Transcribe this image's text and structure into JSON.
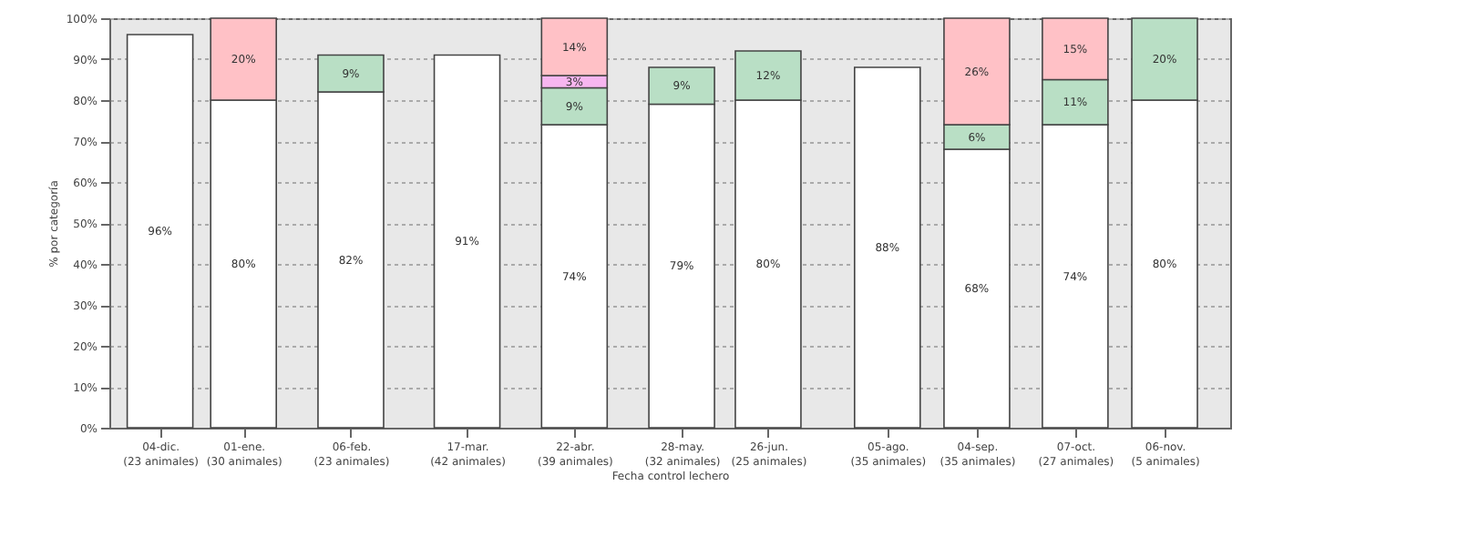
{
  "chart_data": {
    "type": "bar",
    "stacked": true,
    "xlabel": "Fecha control lechero",
    "ylabel": "% por categoría",
    "x": [
      "2022-12-04",
      "2023-01-01",
      "2023-02-06",
      "2023-03-17",
      "2023-04-22",
      "2023-05-28",
      "2023-06-26",
      "2023-08-05",
      "2023-09-04",
      "2023-10-07",
      "2023-11-06"
    ],
    "xlim": [
      "2022-11-17",
      "2023-11-28"
    ],
    "xticks": [
      {
        "value": "2022-12-04",
        "label": "04-dic.\n(23 animales)"
      },
      {
        "value": "2023-01-01",
        "label": "01-ene.\n(30 animales)"
      },
      {
        "value": "2023-02-06",
        "label": "06-feb.\n(23 animales)"
      },
      {
        "value": "2023-03-17",
        "label": "17-mar.\n(42 animales)"
      },
      {
        "value": "2023-04-22",
        "label": "22-abr.\n(39 animales)"
      },
      {
        "value": "2023-05-28",
        "label": "28-may.\n(32 animales)"
      },
      {
        "value": "2023-06-26",
        "label": "26-jun.\n(25 animales)"
      },
      {
        "value": "2023-08-05",
        "label": "05-ago.\n(35 animales)"
      },
      {
        "value": "2023-09-04",
        "label": "04-sep.\n(35 animales)"
      },
      {
        "value": "2023-10-07",
        "label": "07-oct.\n(27 animales)"
      },
      {
        "value": "2023-11-06",
        "label": "06-nov.\n(5 animales)"
      }
    ],
    "ylim": [
      0,
      100
    ],
    "yticks": [
      {
        "value": 0,
        "label": "0%"
      },
      {
        "value": 10,
        "label": "10%"
      },
      {
        "value": 20,
        "label": "20%"
      },
      {
        "value": 30,
        "label": "30%"
      },
      {
        "value": 40,
        "label": "40%"
      },
      {
        "value": 50,
        "label": "50%"
      },
      {
        "value": 60,
        "label": "60%"
      },
      {
        "value": 70,
        "label": "70%"
      },
      {
        "value": 80,
        "label": "80%"
      },
      {
        "value": 90,
        "label": "90%"
      },
      {
        "value": 100,
        "label": "100%"
      }
    ],
    "grid": "y",
    "series": [
      {
        "color": "#ffffff",
        "values": [
          96,
          80,
          82,
          91,
          74,
          79,
          80,
          88,
          68,
          74,
          80
        ],
        "value_labels": [
          "96%",
          "80%",
          "82%",
          "91%",
          "74%",
          "79%",
          "80%",
          "88%",
          "68%",
          "74%",
          "80%"
        ]
      },
      {
        "color": "#b9dfc5",
        "values": [
          null,
          null,
          9,
          null,
          9,
          9,
          12,
          null,
          6,
          11,
          20
        ],
        "value_labels": [
          null,
          null,
          "9%",
          null,
          "9%",
          "9%",
          "12%",
          null,
          "6%",
          "11%",
          "20%"
        ]
      },
      {
        "color": "#f7b6f0",
        "values": [
          null,
          null,
          null,
          null,
          3,
          null,
          null,
          null,
          null,
          null,
          null
        ],
        "value_labels": [
          null,
          null,
          null,
          null,
          "3%",
          null,
          null,
          null,
          null,
          null,
          null
        ]
      },
      {
        "color": "#ffc1c6",
        "values": [
          null,
          20,
          null,
          null,
          14,
          null,
          null,
          null,
          26,
          15,
          null
        ],
        "value_labels": [
          null,
          "20%",
          null,
          null,
          "14%",
          null,
          null,
          null,
          "26%",
          "15%",
          null
        ]
      }
    ]
  }
}
